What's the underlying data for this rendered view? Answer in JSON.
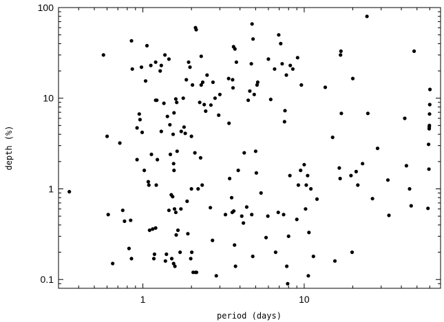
{
  "chart_data": {
    "type": "scatter",
    "xlabel": "period (days)",
    "ylabel": "depth (%)",
    "xscale": "log",
    "yscale": "log",
    "xlim": [
      0.3,
      70
    ],
    "ylim": [
      0.08,
      100
    ],
    "xticks": [
      {
        "value": 1,
        "label": "1"
      },
      {
        "value": 10,
        "label": "10"
      }
    ],
    "yticks": [
      {
        "value": 0.1,
        "label": "0.1"
      },
      {
        "value": 1,
        "label": "1"
      },
      {
        "value": 10,
        "label": "10"
      },
      {
        "value": 100,
        "label": "100"
      }
    ],
    "grid": false,
    "marker_color": "#000000",
    "series": [
      {
        "points": [
          [
            0.35,
            0.93
          ],
          [
            0.57,
            30
          ],
          [
            0.6,
            3.8
          ],
          [
            0.61,
            0.52
          ],
          [
            0.65,
            0.15
          ],
          [
            0.72,
            3.2
          ],
          [
            0.75,
            0.58
          ],
          [
            0.77,
            0.44
          ],
          [
            0.82,
            0.22
          ],
          [
            0.84,
            0.45
          ],
          [
            0.85,
            0.17
          ],
          [
            0.85,
            43
          ],
          [
            0.86,
            21
          ],
          [
            0.92,
            2.1
          ],
          [
            0.92,
            4.7
          ],
          [
            0.95,
            6.7
          ],
          [
            0.96,
            5.8
          ],
          [
            0.98,
            22
          ],
          [
            0.99,
            4.2
          ],
          [
            1.02,
            1.6
          ],
          [
            1.04,
            15.5
          ],
          [
            1.06,
            38
          ],
          [
            1.08,
            1.2
          ],
          [
            1.09,
            1.1
          ],
          [
            1.1,
            0.35
          ],
          [
            1.12,
            23
          ],
          [
            1.13,
            2.4
          ],
          [
            1.15,
            0.36
          ],
          [
            1.17,
            0.17
          ],
          [
            1.18,
            0.19
          ],
          [
            1.2,
            9.5
          ],
          [
            1.2,
            25
          ],
          [
            1.2,
            0.37
          ],
          [
            1.21,
            1.1
          ],
          [
            1.22,
            9.5
          ],
          [
            1.23,
            2.1
          ],
          [
            1.28,
            20
          ],
          [
            1.3,
            4.3
          ],
          [
            1.3,
            23
          ],
          [
            1.35,
            8.8
          ],
          [
            1.37,
            30
          ],
          [
            1.38,
            0.16
          ],
          [
            1.4,
            0.19
          ],
          [
            1.42,
            6.3
          ],
          [
            1.45,
            27
          ],
          [
            1.45,
            0.58
          ],
          [
            1.47,
            5.1
          ],
          [
            1.48,
            2.4
          ],
          [
            1.5,
            0.86
          ],
          [
            1.51,
            0.17
          ],
          [
            1.53,
            0.82
          ],
          [
            1.54,
            4.0
          ],
          [
            1.55,
            1.9
          ],
          [
            1.55,
            0.15
          ],
          [
            1.56,
            1.6
          ],
          [
            1.56,
            6.9
          ],
          [
            1.57,
            0.6
          ],
          [
            1.58,
            0.14
          ],
          [
            1.6,
            0.55
          ],
          [
            1.6,
            9.8
          ],
          [
            1.61,
            0.31
          ],
          [
            1.62,
            9.0
          ],
          [
            1.63,
            2.6
          ],
          [
            1.65,
            0.35
          ],
          [
            1.7,
            0.2
          ],
          [
            1.72,
            0.6
          ],
          [
            1.73,
            4.3
          ],
          [
            1.78,
            10
          ],
          [
            1.8,
            4.8
          ],
          [
            1.83,
            4.1
          ],
          [
            1.86,
            16
          ],
          [
            1.88,
            0.73
          ],
          [
            1.9,
            0.32
          ],
          [
            1.92,
            25
          ],
          [
            1.96,
            22
          ],
          [
            1.98,
            0.17
          ],
          [
            2.0,
            1.0
          ],
          [
            2.0,
            3.8
          ],
          [
            2.01,
            0.2
          ],
          [
            2.03,
            14
          ],
          [
            2.05,
            0.12
          ],
          [
            2.1,
            2.5
          ],
          [
            2.12,
            60
          ],
          [
            2.12,
            0.12
          ],
          [
            2.14,
            57
          ],
          [
            2.15,
            0.12
          ],
          [
            2.2,
            1.0
          ],
          [
            2.25,
            9.0
          ],
          [
            2.28,
            2.2
          ],
          [
            2.3,
            29
          ],
          [
            2.3,
            14
          ],
          [
            2.33,
            1.1
          ],
          [
            2.35,
            15
          ],
          [
            2.4,
            8.5
          ],
          [
            2.45,
            7.2
          ],
          [
            2.5,
            18
          ],
          [
            2.62,
            0.62
          ],
          [
            2.64,
            8.4
          ],
          [
            2.7,
            0.27
          ],
          [
            2.72,
            15
          ],
          [
            2.8,
            10
          ],
          [
            2.85,
            0.11
          ],
          [
            2.95,
            6.5
          ],
          [
            3.0,
            11
          ],
          [
            3.25,
            0.52
          ],
          [
            3.4,
            16.5
          ],
          [
            3.42,
            5.3
          ],
          [
            3.45,
            1.3
          ],
          [
            3.55,
            0.8
          ],
          [
            3.58,
            0.55
          ],
          [
            3.6,
            16
          ],
          [
            3.62,
            13
          ],
          [
            3.65,
            37
          ],
          [
            3.66,
            0.57
          ],
          [
            3.7,
            0.24
          ],
          [
            3.72,
            35
          ],
          [
            3.75,
            0.14
          ],
          [
            3.8,
            25
          ],
          [
            3.9,
            1.6
          ],
          [
            4.1,
            0.5
          ],
          [
            4.2,
            0.42
          ],
          [
            4.25,
            2.5
          ],
          [
            4.4,
            0.63
          ],
          [
            4.5,
            9.5
          ],
          [
            4.6,
            12
          ],
          [
            4.7,
            24
          ],
          [
            4.73,
            0.52
          ],
          [
            4.75,
            66
          ],
          [
            4.8,
            0.18
          ],
          [
            4.82,
            45
          ],
          [
            4.9,
            11
          ],
          [
            5.0,
            2.6
          ],
          [
            5.05,
            1.5
          ],
          [
            5.1,
            14
          ],
          [
            5.15,
            15
          ],
          [
            5.4,
            0.9
          ],
          [
            5.8,
            0.29
          ],
          [
            5.95,
            0.5
          ],
          [
            6.0,
            27
          ],
          [
            6.2,
            9.7
          ],
          [
            6.55,
            21
          ],
          [
            6.65,
            0.2
          ],
          [
            6.9,
            0.55
          ],
          [
            6.95,
            50
          ],
          [
            7.15,
            40
          ],
          [
            7.3,
            24
          ],
          [
            7.45,
            0.52
          ],
          [
            7.55,
            5.5
          ],
          [
            7.6,
            7.3
          ],
          [
            7.75,
            18
          ],
          [
            7.8,
            0.14
          ],
          [
            7.9,
            0.09
          ],
          [
            8.0,
            0.3
          ],
          [
            8.15,
            1.4
          ],
          [
            8.2,
            23
          ],
          [
            8.5,
            21
          ],
          [
            9.0,
            0.46
          ],
          [
            9.1,
            28
          ],
          [
            9.2,
            1.1
          ],
          [
            9.5,
            1.6
          ],
          [
            9.6,
            14
          ],
          [
            10,
            1.85
          ],
          [
            10.2,
            0.6
          ],
          [
            10.3,
            1.1
          ],
          [
            10.5,
            1.4
          ],
          [
            10.6,
            0.11
          ],
          [
            10.7,
            0.33
          ],
          [
            11,
            1.0
          ],
          [
            11.4,
            0.18
          ],
          [
            12,
            0.77
          ],
          [
            13.5,
            13.2
          ],
          [
            15,
            3.7
          ],
          [
            15.5,
            0.16
          ],
          [
            16.5,
            1.7
          ],
          [
            16.7,
            1.3
          ],
          [
            16.8,
            30
          ],
          [
            16.9,
            33
          ],
          [
            17,
            6.8
          ],
          [
            19.5,
            1.4
          ],
          [
            19.8,
            0.2
          ],
          [
            20,
            16.5
          ],
          [
            21,
            1.55
          ],
          [
            21.5,
            1.1
          ],
          [
            23,
            1.9
          ],
          [
            24.5,
            80
          ],
          [
            24.8,
            6.8
          ],
          [
            26.5,
            0.78
          ],
          [
            28.5,
            2.8
          ],
          [
            33,
            1.25
          ],
          [
            33.5,
            0.51
          ],
          [
            42,
            6.0
          ],
          [
            43,
            1.8
          ],
          [
            45,
            1.0
          ],
          [
            46,
            0.65
          ],
          [
            48,
            33
          ],
          [
            58.5,
            0.61
          ],
          [
            59,
            3.1
          ],
          [
            59.3,
            1.65
          ],
          [
            59.5,
            4.6
          ],
          [
            59.7,
            5.0
          ],
          [
            59.8,
            6.7
          ],
          [
            60,
            8.5
          ],
          [
            60.2,
            12.5
          ],
          [
            59.6,
            4.8
          ]
        ]
      }
    ]
  }
}
